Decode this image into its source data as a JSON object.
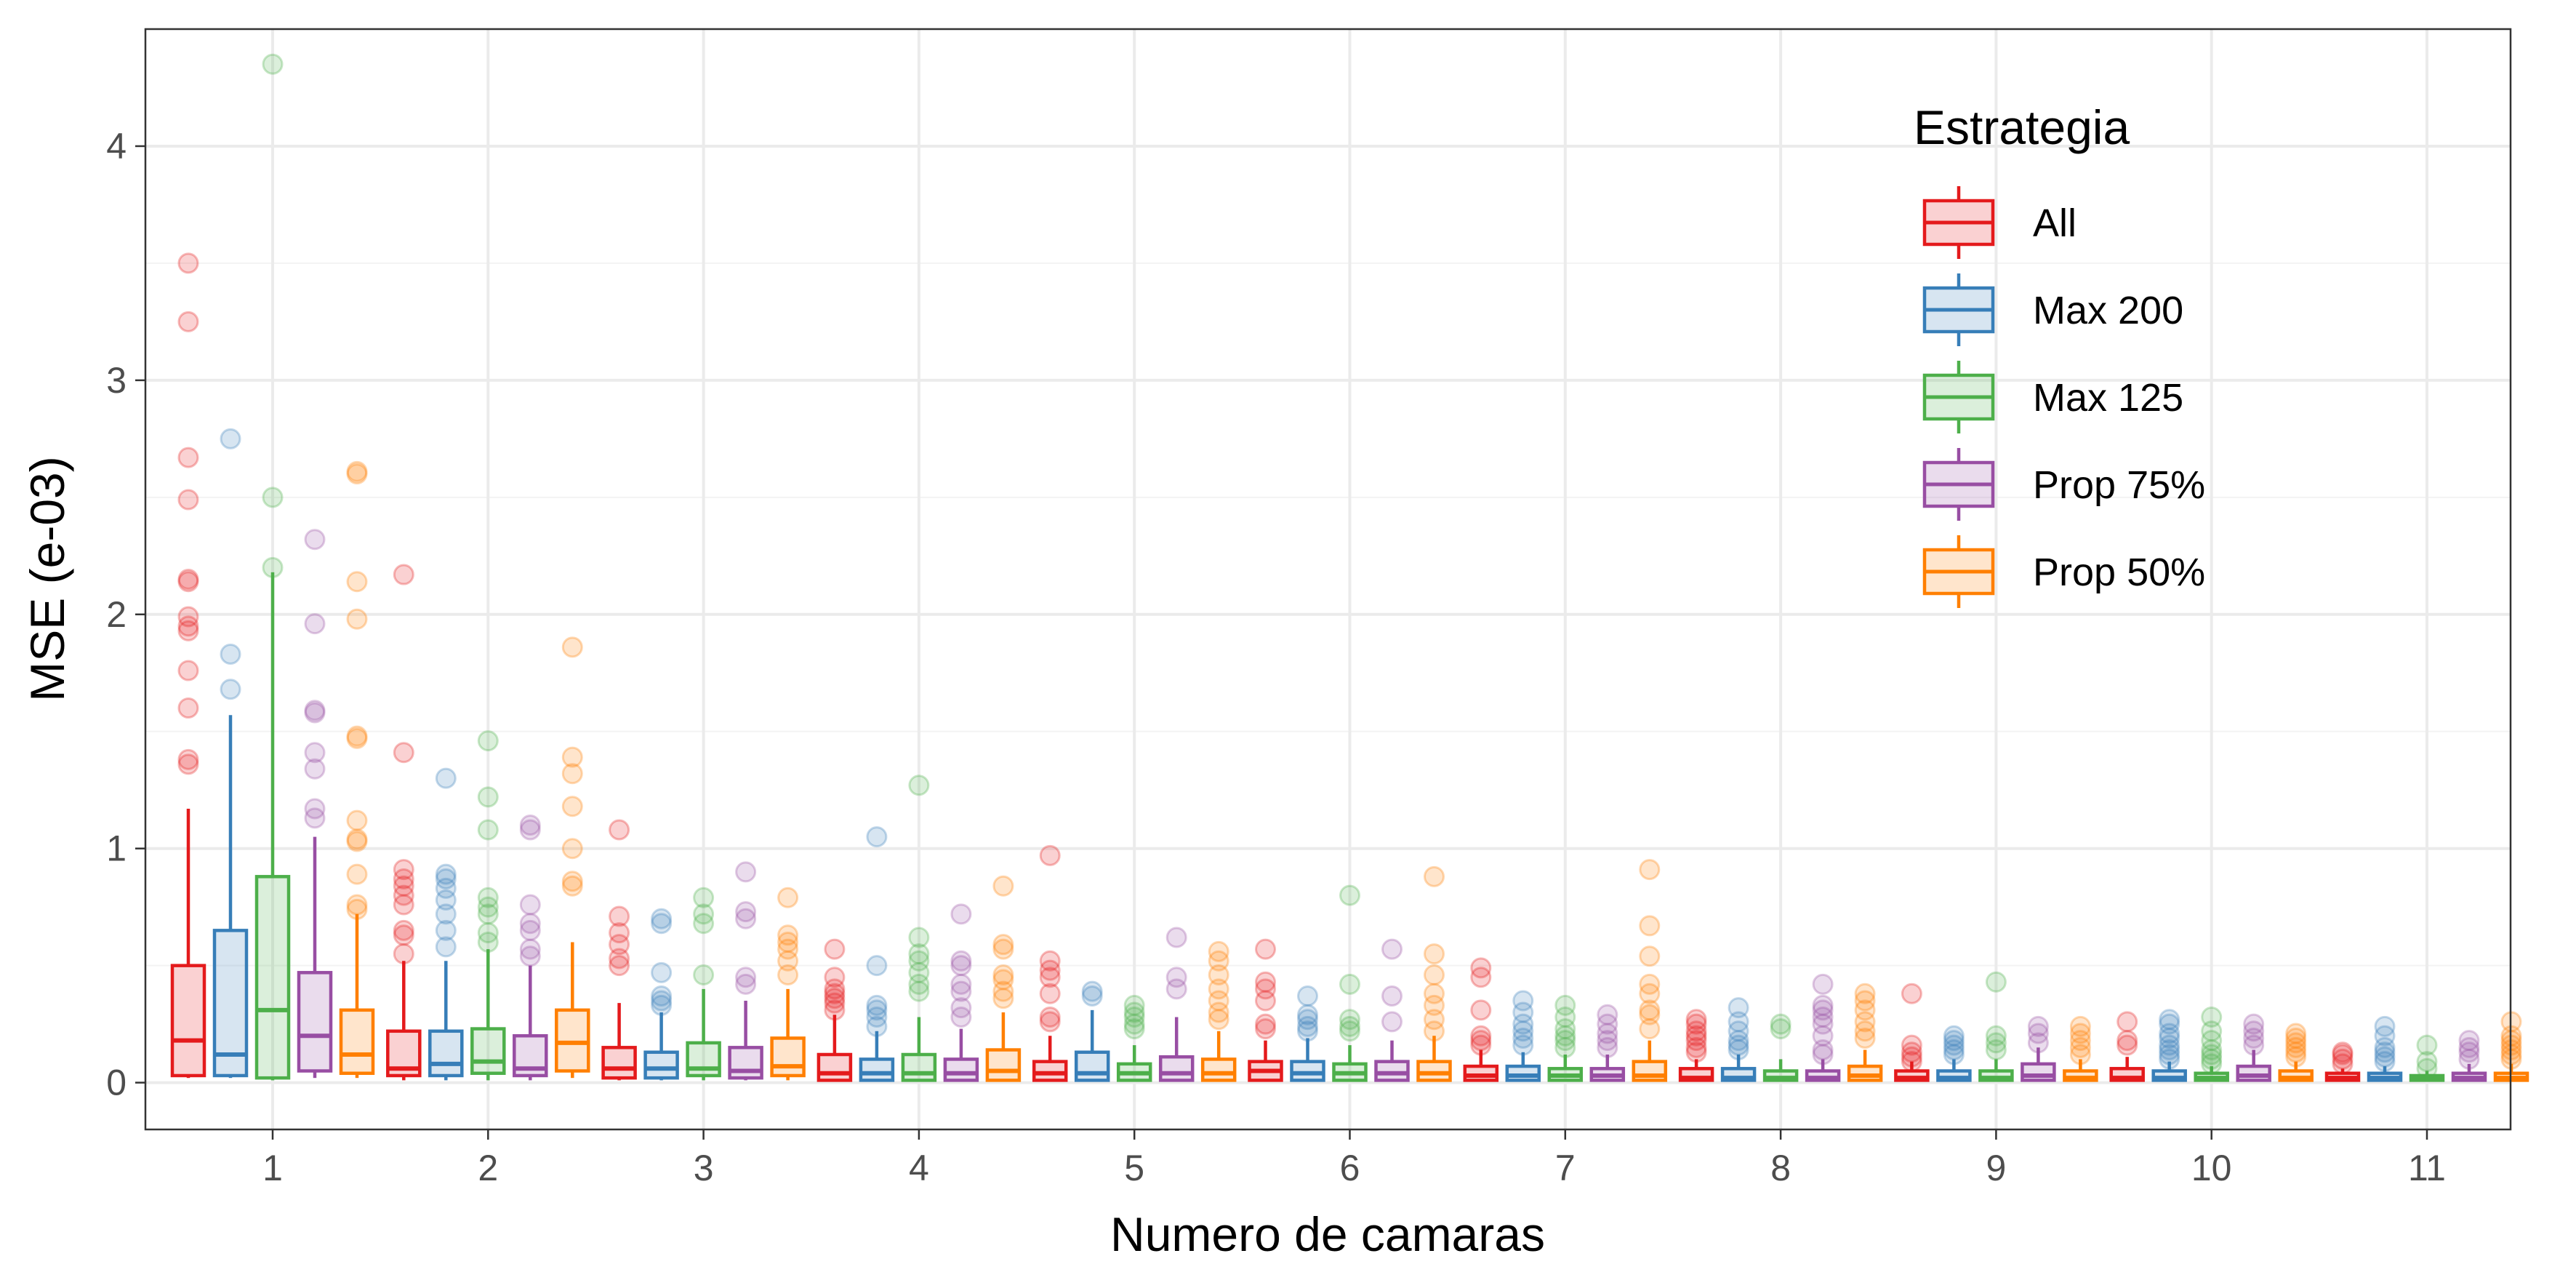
{
  "chart_data": {
    "type": "boxplot",
    "title": "",
    "xlabel": "Numero de camaras",
    "ylabel": "MSE (e-03)",
    "ylim": [
      -0.2,
      4.5
    ],
    "yticks": [
      0,
      1,
      2,
      3,
      4
    ],
    "categories": [
      "1",
      "2",
      "3",
      "4",
      "5",
      "6",
      "7",
      "8",
      "9",
      "10",
      "11"
    ],
    "grid": true,
    "legend": {
      "title": "Estrategia",
      "position": "top-right"
    },
    "series": [
      {
        "name": "All",
        "color": "#e41a1c",
        "boxes": [
          {
            "low": 0.02,
            "q1": 0.03,
            "med": 0.18,
            "q3": 0.5,
            "high": 1.17,
            "outliers": [
              1.36,
              1.38,
              1.6,
              1.76,
              1.93,
              1.95,
              1.99,
              2.14,
              2.15,
              2.49,
              2.67,
              3.25,
              3.5
            ]
          },
          {
            "low": 0.01,
            "q1": 0.03,
            "med": 0.06,
            "q3": 0.22,
            "high": 0.52,
            "outliers": [
              0.55,
              0.63,
              0.65,
              0.76,
              0.8,
              0.84,
              0.87,
              0.91,
              1.41,
              2.17
            ]
          },
          {
            "low": 0.01,
            "q1": 0.02,
            "med": 0.06,
            "q3": 0.15,
            "high": 0.34,
            "outliers": [
              0.5,
              0.53,
              0.59,
              0.64,
              0.71,
              1.08
            ]
          },
          {
            "low": 0.005,
            "q1": 0.01,
            "med": 0.04,
            "q3": 0.12,
            "high": 0.29,
            "outliers": [
              0.31,
              0.34,
              0.36,
              0.38,
              0.4,
              0.45,
              0.57
            ]
          },
          {
            "low": 0.005,
            "q1": 0.01,
            "med": 0.04,
            "q3": 0.09,
            "high": 0.2,
            "outliers": [
              0.26,
              0.28,
              0.38,
              0.45,
              0.48,
              0.52,
              0.97
            ]
          },
          {
            "low": 0.005,
            "q1": 0.01,
            "med": 0.05,
            "q3": 0.09,
            "high": 0.18,
            "outliers": [
              0.23,
              0.25,
              0.35,
              0.4,
              0.43,
              0.57
            ]
          },
          {
            "low": 0.005,
            "q1": 0.01,
            "med": 0.03,
            "q3": 0.07,
            "high": 0.14,
            "outliers": [
              0.16,
              0.18,
              0.2,
              0.31,
              0.45,
              0.49
            ]
          },
          {
            "low": 0.005,
            "q1": 0.01,
            "med": 0.02,
            "q3": 0.06,
            "high": 0.1,
            "outliers": [
              0.13,
              0.15,
              0.18,
              0.2,
              0.22,
              0.25,
              0.27
            ]
          },
          {
            "low": 0.005,
            "q1": 0.01,
            "med": 0.02,
            "q3": 0.05,
            "high": 0.09,
            "outliers": [
              0.09,
              0.11,
              0.13,
              0.16,
              0.38
            ]
          },
          {
            "low": 0.005,
            "q1": 0.01,
            "med": 0.02,
            "q3": 0.06,
            "high": 0.11,
            "outliers": [
              0.16,
              0.18,
              0.26
            ]
          },
          {
            "low": 0.005,
            "q1": 0.01,
            "med": 0.02,
            "q3": 0.04,
            "high": 0.06,
            "outliers": [
              0.08,
              0.1,
              0.12,
              0.13
            ]
          }
        ]
      },
      {
        "name": "Max 200",
        "color": "#377eb8",
        "boxes": [
          {
            "low": 0.02,
            "q1": 0.03,
            "med": 0.12,
            "q3": 0.65,
            "high": 1.57,
            "outliers": [
              1.68,
              1.83,
              2.75
            ]
          },
          {
            "low": 0.01,
            "q1": 0.03,
            "med": 0.08,
            "q3": 0.22,
            "high": 0.52,
            "outliers": [
              0.58,
              0.65,
              0.72,
              0.78,
              0.83,
              0.87,
              0.89,
              1.3
            ]
          },
          {
            "low": 0.01,
            "q1": 0.02,
            "med": 0.06,
            "q3": 0.13,
            "high": 0.3,
            "outliers": [
              0.33,
              0.35,
              0.37,
              0.47,
              0.68,
              0.7
            ]
          },
          {
            "low": 0.005,
            "q1": 0.01,
            "med": 0.04,
            "q3": 0.1,
            "high": 0.22,
            "outliers": [
              0.24,
              0.28,
              0.31,
              0.33,
              0.5,
              1.05
            ]
          },
          {
            "low": 0.005,
            "q1": 0.01,
            "med": 0.04,
            "q3": 0.13,
            "high": 0.31,
            "outliers": [
              0.37,
              0.39
            ]
          },
          {
            "low": 0.005,
            "q1": 0.01,
            "med": 0.04,
            "q3": 0.09,
            "high": 0.19,
            "outliers": [
              0.22,
              0.24,
              0.27,
              0.29,
              0.37
            ]
          },
          {
            "low": 0.005,
            "q1": 0.01,
            "med": 0.03,
            "q3": 0.07,
            "high": 0.13,
            "outliers": [
              0.16,
              0.19,
              0.22,
              0.25,
              0.3,
              0.35
            ]
          },
          {
            "low": 0.005,
            "q1": 0.01,
            "med": 0.02,
            "q3": 0.06,
            "high": 0.12,
            "outliers": [
              0.14,
              0.16,
              0.18,
              0.22,
              0.26,
              0.32
            ]
          },
          {
            "low": 0.005,
            "q1": 0.01,
            "med": 0.02,
            "q3": 0.05,
            "high": 0.1,
            "outliers": [
              0.12,
              0.14,
              0.16,
              0.18,
              0.2
            ]
          },
          {
            "low": 0.005,
            "q1": 0.01,
            "med": 0.02,
            "q3": 0.05,
            "high": 0.09,
            "outliers": [
              0.1,
              0.12,
              0.14,
              0.16,
              0.19,
              0.21,
              0.25,
              0.27
            ]
          },
          {
            "low": 0.005,
            "q1": 0.01,
            "med": 0.02,
            "q3": 0.04,
            "high": 0.07,
            "outliers": [
              0.09,
              0.11,
              0.13,
              0.15,
              0.2,
              0.24
            ]
          }
        ]
      },
      {
        "name": "Max 125",
        "color": "#4daf4a",
        "boxes": [
          {
            "low": 0.01,
            "q1": 0.02,
            "med": 0.31,
            "q3": 0.88,
            "high": 2.18,
            "outliers": [
              2.2,
              2.5,
              4.35
            ]
          },
          {
            "low": 0.01,
            "q1": 0.04,
            "med": 0.09,
            "q3": 0.23,
            "high": 0.57,
            "outliers": [
              0.6,
              0.64,
              0.72,
              0.75,
              0.79,
              1.08,
              1.22,
              1.46
            ]
          },
          {
            "low": 0.01,
            "q1": 0.03,
            "med": 0.06,
            "q3": 0.17,
            "high": 0.4,
            "outliers": [
              0.46,
              0.68,
              0.72,
              0.79
            ]
          },
          {
            "low": 0.005,
            "q1": 0.01,
            "med": 0.04,
            "q3": 0.12,
            "high": 0.28,
            "outliers": [
              0.39,
              0.42,
              0.47,
              0.52,
              0.55,
              0.62,
              1.27
            ]
          },
          {
            "low": 0.005,
            "q1": 0.01,
            "med": 0.04,
            "q3": 0.08,
            "high": 0.16,
            "outliers": [
              0.23,
              0.25,
              0.28,
              0.3,
              0.33
            ]
          },
          {
            "low": 0.005,
            "q1": 0.01,
            "med": 0.04,
            "q3": 0.08,
            "high": 0.16,
            "outliers": [
              0.22,
              0.24,
              0.27,
              0.42,
              0.8
            ]
          },
          {
            "low": 0.005,
            "q1": 0.01,
            "med": 0.03,
            "q3": 0.06,
            "high": 0.12,
            "outliers": [
              0.15,
              0.18,
              0.2,
              0.23,
              0.28,
              0.33
            ]
          },
          {
            "low": 0.005,
            "q1": 0.01,
            "med": 0.02,
            "q3": 0.05,
            "high": 0.1,
            "outliers": [
              0.23,
              0.25
            ]
          },
          {
            "low": 0.005,
            "q1": 0.01,
            "med": 0.02,
            "q3": 0.05,
            "high": 0.1,
            "outliers": [
              0.14,
              0.17,
              0.2,
              0.43
            ]
          },
          {
            "low": 0.005,
            "q1": 0.01,
            "med": 0.02,
            "q3": 0.04,
            "high": 0.07,
            "outliers": [
              0.08,
              0.1,
              0.12,
              0.14,
              0.18,
              0.22,
              0.28
            ]
          },
          {
            "low": 0.005,
            "q1": 0.01,
            "med": 0.02,
            "q3": 0.03,
            "high": 0.05,
            "outliers": [
              0.06,
              0.09,
              0.16
            ]
          }
        ]
      },
      {
        "name": "Prop 75%",
        "color": "#984ea3",
        "boxes": [
          {
            "low": 0.02,
            "q1": 0.05,
            "med": 0.2,
            "q3": 0.47,
            "high": 1.05,
            "outliers": [
              1.13,
              1.17,
              1.34,
              1.41,
              1.58,
              1.59,
              1.96,
              2.32
            ]
          },
          {
            "low": 0.01,
            "q1": 0.03,
            "med": 0.06,
            "q3": 0.2,
            "high": 0.5,
            "outliers": [
              0.54,
              0.57,
              0.65,
              0.68,
              0.76,
              1.08,
              1.1
            ]
          },
          {
            "low": 0.01,
            "q1": 0.02,
            "med": 0.05,
            "q3": 0.15,
            "high": 0.35,
            "outliers": [
              0.42,
              0.45,
              0.7,
              0.73,
              0.9
            ]
          },
          {
            "low": 0.005,
            "q1": 0.01,
            "med": 0.04,
            "q3": 0.1,
            "high": 0.23,
            "outliers": [
              0.28,
              0.32,
              0.39,
              0.42,
              0.5,
              0.52,
              0.72
            ]
          },
          {
            "low": 0.005,
            "q1": 0.01,
            "med": 0.04,
            "q3": 0.11,
            "high": 0.28,
            "outliers": [
              0.4,
              0.45,
              0.62
            ]
          },
          {
            "low": 0.005,
            "q1": 0.01,
            "med": 0.04,
            "q3": 0.09,
            "high": 0.18,
            "outliers": [
              0.26,
              0.37,
              0.57
            ]
          },
          {
            "low": 0.005,
            "q1": 0.01,
            "med": 0.03,
            "q3": 0.06,
            "high": 0.12,
            "outliers": [
              0.15,
              0.18,
              0.21,
              0.25,
              0.29
            ]
          },
          {
            "low": 0.005,
            "q1": 0.01,
            "med": 0.02,
            "q3": 0.05,
            "high": 0.1,
            "outliers": [
              0.12,
              0.14,
              0.2,
              0.25,
              0.28,
              0.31,
              0.33,
              0.42
            ]
          },
          {
            "low": 0.005,
            "q1": 0.01,
            "med": 0.03,
            "q3": 0.08,
            "high": 0.15,
            "outliers": [
              0.17,
              0.21,
              0.24
            ]
          },
          {
            "low": 0.005,
            "q1": 0.01,
            "med": 0.03,
            "q3": 0.07,
            "high": 0.14,
            "outliers": [
              0.16,
              0.19,
              0.22,
              0.25
            ]
          },
          {
            "low": 0.005,
            "q1": 0.01,
            "med": 0.02,
            "q3": 0.04,
            "high": 0.08,
            "outliers": [
              0.1,
              0.13,
              0.15,
              0.18
            ]
          }
        ]
      },
      {
        "name": "Prop 50%",
        "color": "#ff7f00",
        "boxes": [
          {
            "low": 0.02,
            "q1": 0.04,
            "med": 0.12,
            "q3": 0.31,
            "high": 0.72,
            "outliers": [
              0.74,
              0.76,
              0.89,
              1.03,
              1.04,
              1.12,
              1.47,
              1.48,
              1.98,
              2.14,
              2.6,
              2.61
            ]
          },
          {
            "low": 0.02,
            "q1": 0.05,
            "med": 0.17,
            "q3": 0.31,
            "high": 0.6,
            "outliers": [
              0.84,
              0.86,
              1.0,
              1.18,
              1.32,
              1.39,
              1.86
            ]
          },
          {
            "low": 0.01,
            "q1": 0.03,
            "med": 0.07,
            "q3": 0.19,
            "high": 0.4,
            "outliers": [
              0.46,
              0.52,
              0.57,
              0.6,
              0.63,
              0.79
            ]
          },
          {
            "low": 0.005,
            "q1": 0.01,
            "med": 0.05,
            "q3": 0.14,
            "high": 0.3,
            "outliers": [
              0.36,
              0.39,
              0.44,
              0.46,
              0.57,
              0.59,
              0.84
            ]
          },
          {
            "low": 0.005,
            "q1": 0.01,
            "med": 0.04,
            "q3": 0.1,
            "high": 0.22,
            "outliers": [
              0.27,
              0.3,
              0.35,
              0.4,
              0.46,
              0.52,
              0.56
            ]
          },
          {
            "low": 0.005,
            "q1": 0.01,
            "med": 0.04,
            "q3": 0.09,
            "high": 0.2,
            "outliers": [
              0.22,
              0.27,
              0.33,
              0.38,
              0.46,
              0.55,
              0.88
            ]
          },
          {
            "low": 0.005,
            "q1": 0.01,
            "med": 0.03,
            "q3": 0.09,
            "high": 0.18,
            "outliers": [
              0.23,
              0.29,
              0.31,
              0.38,
              0.42,
              0.54,
              0.67,
              0.91
            ]
          },
          {
            "low": 0.005,
            "q1": 0.01,
            "med": 0.03,
            "q3": 0.07,
            "high": 0.14,
            "outliers": [
              0.19,
              0.22,
              0.26,
              0.31,
              0.35,
              0.38
            ]
          },
          {
            "low": 0.005,
            "q1": 0.01,
            "med": 0.02,
            "q3": 0.05,
            "high": 0.1,
            "outliers": [
              0.12,
              0.15,
              0.18,
              0.21,
              0.24
            ]
          },
          {
            "low": 0.005,
            "q1": 0.01,
            "med": 0.02,
            "q3": 0.05,
            "high": 0.09,
            "outliers": [
              0.11,
              0.13,
              0.15,
              0.17,
              0.19,
              0.21
            ]
          },
          {
            "low": 0.005,
            "q1": 0.01,
            "med": 0.02,
            "q3": 0.04,
            "high": 0.08,
            "outliers": [
              0.1,
              0.12,
              0.14,
              0.16,
              0.18,
              0.2,
              0.26
            ]
          }
        ]
      }
    ]
  }
}
